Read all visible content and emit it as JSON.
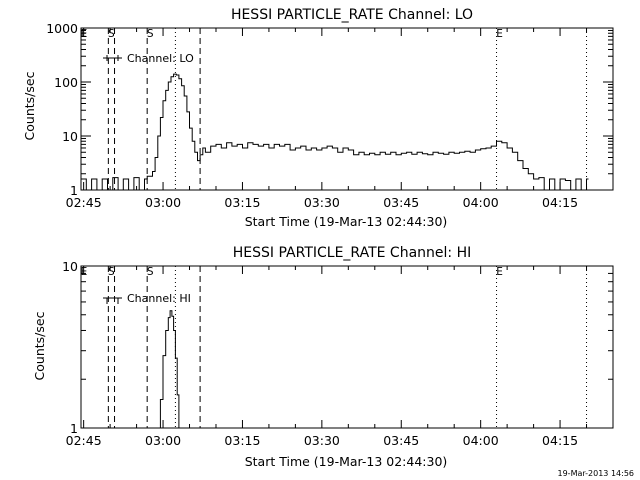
{
  "timestamp": "19-Mar-2013 14:56",
  "chart_data": [
    {
      "type": "line",
      "title": "HESSI PARTICLE_RATE Channel: LO",
      "ylabel": "Counts/sec",
      "xlabel": "Start Time (19-Mar-13 02:44:30)",
      "yscale": "log",
      "ylim": [
        1,
        1000
      ],
      "ytick_labels": [
        "1",
        "10",
        "100",
        "1000"
      ],
      "ytick_values": [
        1,
        10,
        100,
        1000
      ],
      "xlim": [
        "02:44:30",
        "04:25:00"
      ],
      "xtick_labels": [
        "02:45",
        "03:00",
        "03:15",
        "03:30",
        "03:45",
        "04:00",
        "04:15"
      ],
      "legend": "Channel: LO",
      "legend_position": "top-left",
      "markers": [
        {
          "label": "E",
          "time": "02:44:30",
          "style": "dotted"
        },
        {
          "label": "S",
          "time": "02:49:40",
          "style": "dashed"
        },
        {
          "label": "",
          "time": "02:50:50",
          "style": "dashed"
        },
        {
          "label": "S",
          "time": "02:57:00",
          "style": "dashed"
        },
        {
          "label": "",
          "time": "03:02:20",
          "style": "dotted"
        },
        {
          "label": "",
          "time": "03:07:00",
          "style": "dashed"
        },
        {
          "label": "E",
          "time": "04:03:00",
          "style": "dotted"
        },
        {
          "label": "",
          "time": "04:20:00",
          "style": "dotted"
        }
      ],
      "series": [
        {
          "x": [
            "02:44:30",
            "02:45:30",
            "02:46:30",
            "02:47:30",
            "02:48:30",
            "02:49:30",
            "02:50:30",
            "02:51:30",
            "02:52:30",
            "02:53:30",
            "02:54:30",
            "02:55:30",
            "02:56:30",
            "02:57:00",
            "02:57:30",
            "02:58:00",
            "02:58:30",
            "02:59:00",
            "02:59:30",
            "03:00:00",
            "03:00:30",
            "03:01:00",
            "03:01:30",
            "03:02:00",
            "03:02:30",
            "03:03:00",
            "03:03:30",
            "03:04:00",
            "03:04:30",
            "03:05:00",
            "03:05:30",
            "03:06:00",
            "03:06:30",
            "03:07:00",
            "03:07:30",
            "03:08:00",
            "03:09:00",
            "03:10:00",
            "03:11:00",
            "03:12:00",
            "03:13:00",
            "03:14:00",
            "03:15:00",
            "03:16:00",
            "03:17:00",
            "03:18:00",
            "03:19:00",
            "03:20:00",
            "03:21:00",
            "03:22:00",
            "03:23:00",
            "03:24:00",
            "03:25:00",
            "03:26:00",
            "03:27:00",
            "03:28:00",
            "03:29:00",
            "03:30:00",
            "03:31:00",
            "03:32:00",
            "03:33:00",
            "03:34:00",
            "03:35:00",
            "03:36:00",
            "03:37:00",
            "03:38:00",
            "03:39:00",
            "03:40:00",
            "03:41:00",
            "03:42:00",
            "03:43:00",
            "03:44:00",
            "03:45:00",
            "03:46:00",
            "03:47:00",
            "03:48:00",
            "03:49:00",
            "03:50:00",
            "03:51:00",
            "03:52:00",
            "03:53:00",
            "03:54:00",
            "03:55:00",
            "03:56:00",
            "03:57:00",
            "03:58:00",
            "03:59:00",
            "04:00:00",
            "04:01:00",
            "04:02:00",
            "04:03:00",
            "04:04:00",
            "04:05:00",
            "04:06:00",
            "04:07:00",
            "04:08:00",
            "04:09:00",
            "04:10:00",
            "04:11:00",
            "04:12:00",
            "04:13:00",
            "04:14:00",
            "04:15:00",
            "04:16:00",
            "04:17:00",
            "04:18:00",
            "04:19:00",
            "04:20:00"
          ],
          "values": [
            1.6,
            1,
            1.6,
            1,
            1.6,
            1,
            1.7,
            1,
            1.6,
            1,
            1.7,
            1,
            1.6,
            1.8,
            1.8,
            2.2,
            4,
            10,
            22,
            45,
            70,
            100,
            125,
            140,
            135,
            115,
            85,
            55,
            28,
            14,
            8,
            5,
            3.5,
            4.5,
            6,
            5,
            6.5,
            7,
            6,
            7.5,
            6.5,
            7,
            6,
            7.5,
            7,
            6.5,
            7,
            6,
            7,
            6.5,
            7,
            5.5,
            6,
            6.5,
            5.5,
            6,
            5.5,
            6,
            6.5,
            6,
            5,
            6,
            5.5,
            4.5,
            5,
            4.5,
            4.8,
            4.5,
            5,
            4.6,
            5,
            4.5,
            4.8,
            5,
            4.6,
            5,
            4.7,
            4.5,
            5,
            4.8,
            4.6,
            5,
            4.8,
            5,
            5.2,
            5,
            5.5,
            5.8,
            6,
            6.5,
            8,
            7.5,
            6,
            5,
            3.5,
            2.5,
            2,
            1.6,
            1.7,
            1,
            1.6,
            1,
            1.6,
            1.5,
            1,
            1.6,
            1,
            1.6
          ]
        }
      ]
    },
    {
      "type": "line",
      "title": "HESSI PARTICLE_RATE Channel: HI",
      "ylabel": "Counts/sec",
      "xlabel": "Start Time (19-Mar-13 02:44:30)",
      "yscale": "log",
      "ylim": [
        1,
        10
      ],
      "ytick_labels": [
        "1",
        "10"
      ],
      "ytick_values": [
        1,
        10
      ],
      "xlim": [
        "02:44:30",
        "04:25:00"
      ],
      "xtick_labels": [
        "02:45",
        "03:00",
        "03:15",
        "03:30",
        "03:45",
        "04:00",
        "04:15"
      ],
      "legend": "Channel: HI",
      "legend_position": "top-left",
      "markers": [
        {
          "label": "E",
          "time": "02:44:30",
          "style": "dotted"
        },
        {
          "label": "S",
          "time": "02:49:40",
          "style": "dashed"
        },
        {
          "label": "",
          "time": "02:50:50",
          "style": "dashed"
        },
        {
          "label": "S",
          "time": "02:57:00",
          "style": "dashed"
        },
        {
          "label": "",
          "time": "03:02:20",
          "style": "dotted"
        },
        {
          "label": "",
          "time": "03:07:00",
          "style": "dashed"
        },
        {
          "label": "E",
          "time": "04:03:00",
          "style": "dotted"
        },
        {
          "label": "",
          "time": "04:20:00",
          "style": "dotted"
        }
      ],
      "series": [
        {
          "x": [
            "02:59:15",
            "02:59:30",
            "03:00:00",
            "03:00:30",
            "03:01:00",
            "03:01:20",
            "03:01:40",
            "03:02:00",
            "03:02:20",
            "03:02:40",
            "03:03:00"
          ],
          "values": [
            1,
            1.5,
            2.8,
            4,
            4.8,
            5.3,
            4.9,
            4.0,
            2.7,
            1.6,
            1
          ]
        }
      ]
    }
  ]
}
